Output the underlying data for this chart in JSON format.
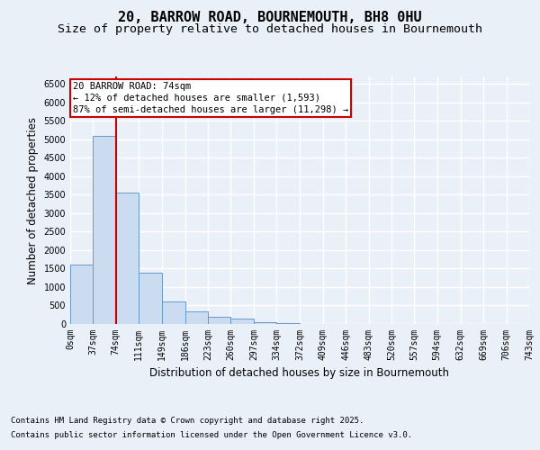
{
  "title_line1": "20, BARROW ROAD, BOURNEMOUTH, BH8 0HU",
  "title_line2": "Size of property relative to detached houses in Bournemouth",
  "xlabel": "Distribution of detached houses by size in Bournemouth",
  "ylabel": "Number of detached properties",
  "bin_edges": [
    0,
    37,
    74,
    111,
    149,
    186,
    223,
    260,
    297,
    334,
    372,
    409,
    446,
    483,
    520,
    557,
    594,
    632,
    669,
    706,
    743
  ],
  "bar_heights": [
    1600,
    5100,
    3550,
    1400,
    620,
    350,
    200,
    150,
    60,
    20,
    10,
    5,
    3,
    2,
    1,
    1,
    0,
    0,
    0,
    0
  ],
  "bar_color": "#ccdcf0",
  "bar_edge_color": "#6699cc",
  "property_line_x": 74,
  "property_line_color": "#cc0000",
  "ylim": [
    0,
    6700
  ],
  "yticks": [
    0,
    500,
    1000,
    1500,
    2000,
    2500,
    3000,
    3500,
    4000,
    4500,
    5000,
    5500,
    6000,
    6500
  ],
  "annotation_title": "20 BARROW ROAD: 74sqm",
  "annotation_line1": "← 12% of detached houses are smaller (1,593)",
  "annotation_line2": "87% of semi-detached houses are larger (11,298) →",
  "annotation_box_color": "#cc0000",
  "footnote_line1": "Contains HM Land Registry data © Crown copyright and database right 2025.",
  "footnote_line2": "Contains public sector information licensed under the Open Government Licence v3.0.",
  "background_color": "#eaf0f8",
  "plot_bg_color": "#eaf0f8",
  "grid_color": "#ffffff",
  "title_fontsize": 11,
  "subtitle_fontsize": 9.5,
  "axis_label_fontsize": 8.5,
  "tick_fontsize": 7,
  "annotation_fontsize": 7.5,
  "footnote_fontsize": 6.5
}
